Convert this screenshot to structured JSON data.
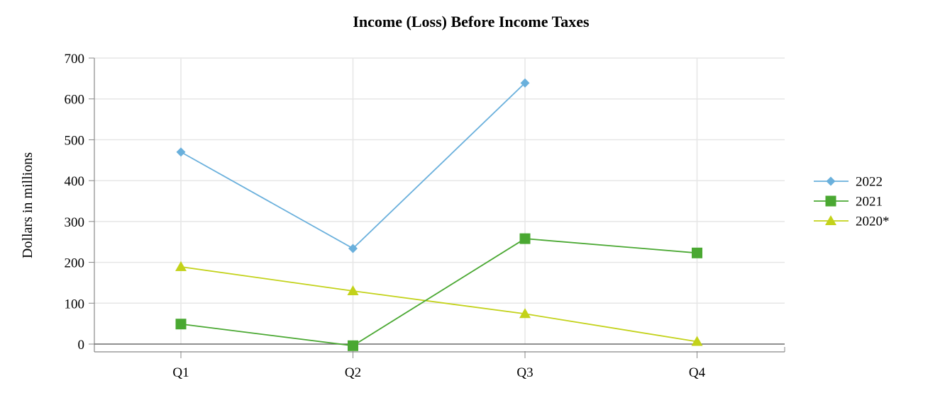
{
  "chart_data": {
    "type": "line",
    "title": "Income (Loss) Before Income Taxes",
    "xlabel": "",
    "ylabel": "Dollars in millions",
    "categories": [
      "Q1",
      "Q2",
      "Q3",
      "Q4"
    ],
    "ylim": [
      0,
      700
    ],
    "yticks": [
      0,
      100,
      200,
      300,
      400,
      500,
      600,
      700
    ],
    "grid": true,
    "legend_position": "right",
    "series": [
      {
        "name": "2022",
        "color": "#6ab0dc",
        "marker": "diamond",
        "values": [
          470,
          234,
          639,
          null
        ]
      },
      {
        "name": "2021",
        "color": "#4aa832",
        "marker": "square",
        "values": [
          49,
          -4,
          258,
          223
        ]
      },
      {
        "name": "2020*",
        "color": "#c3d21a",
        "marker": "triangle",
        "values": [
          189,
          130,
          74,
          6
        ]
      }
    ]
  }
}
